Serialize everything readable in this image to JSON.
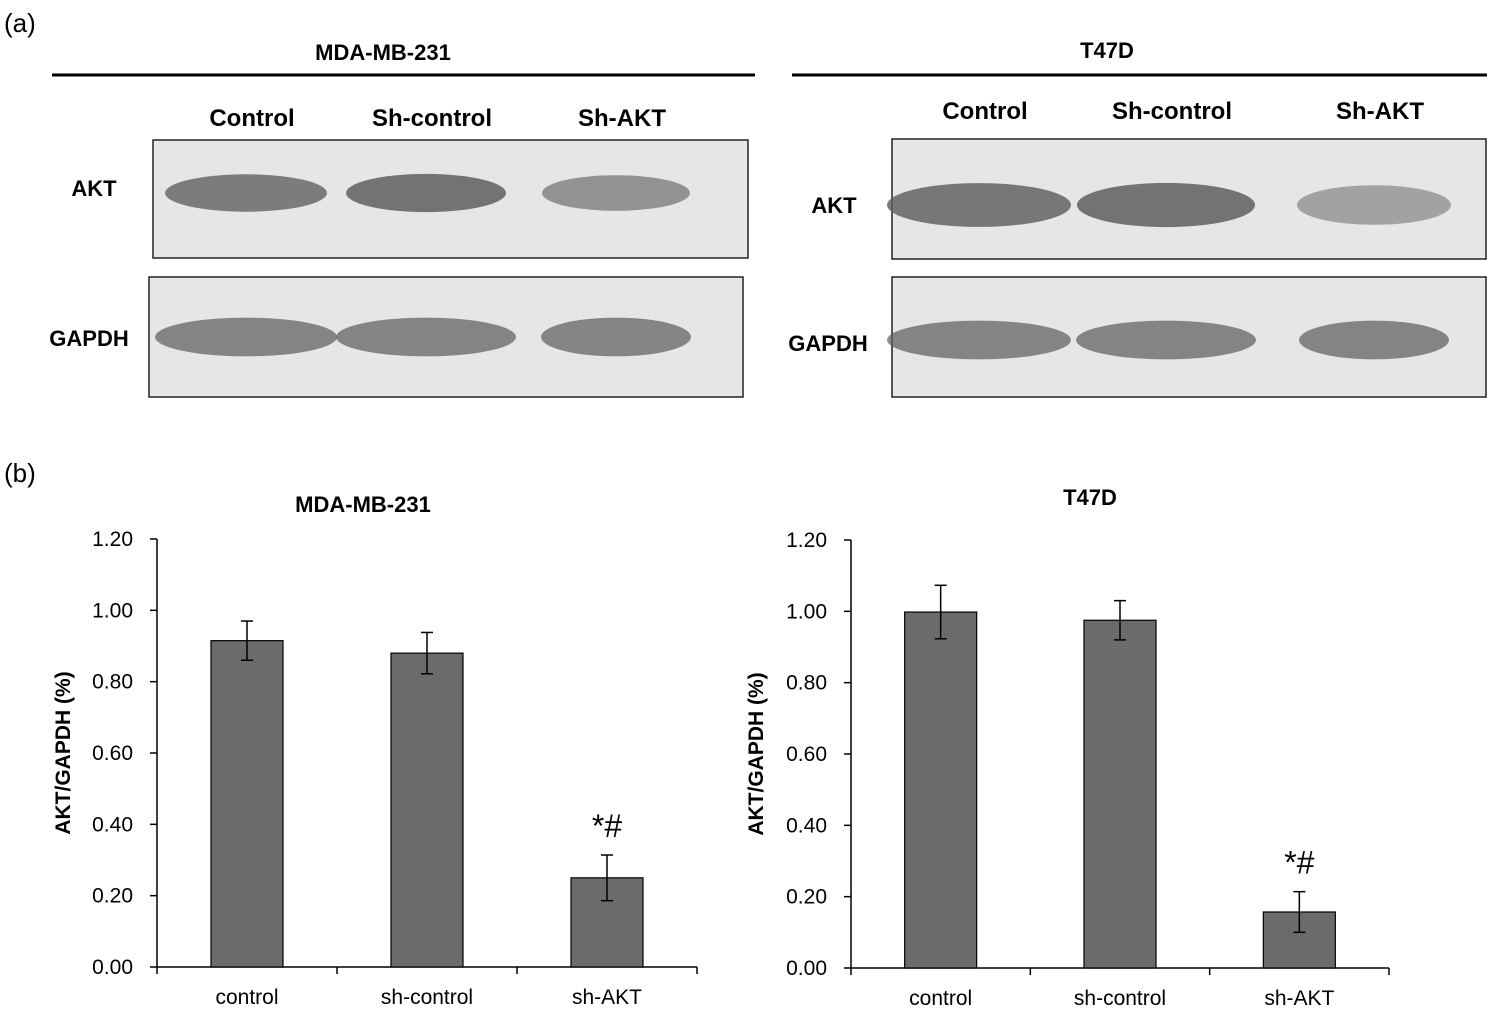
{
  "panel_a": {
    "label": "(a)",
    "blots": [
      {
        "cell_line": "MDA-MB-231",
        "lanes": [
          "Control",
          "Sh-control",
          "Sh-AKT"
        ],
        "rows": [
          {
            "protein": "AKT",
            "band_intensity": [
              0.78,
              0.85,
              0.62
            ]
          },
          {
            "protein": "GAPDH",
            "band_intensity": [
              0.72,
              0.72,
              0.72
            ]
          }
        ]
      },
      {
        "cell_line": "T47D",
        "lanes": [
          "Control",
          "Sh-control",
          "Sh-AKT"
        ],
        "rows": [
          {
            "protein": "AKT",
            "band_intensity": [
              0.82,
              0.85,
              0.5
            ]
          },
          {
            "protein": "GAPDH",
            "band_intensity": [
              0.72,
              0.72,
              0.72
            ]
          }
        ]
      }
    ]
  },
  "panel_b": {
    "label": "(b)"
  },
  "colors": {
    "bar": "#6b6b6b",
    "band": "#5e5e5e",
    "membrane": "#e6e6e6"
  },
  "chart_data": [
    {
      "type": "bar",
      "title": "MDA-MB-231",
      "ylabel": "AKT/GAPDH (%)",
      "xlabel": "",
      "categories": [
        "control",
        "sh-control",
        "sh-AKT"
      ],
      "values": [
        0.915,
        0.88,
        0.25
      ],
      "errors": [
        0.055,
        0.058,
        0.064
      ],
      "annotations": [
        "",
        "",
        "*#"
      ],
      "ylim": [
        0,
        1.2
      ],
      "yticks": [
        "0.00",
        "0.20",
        "0.40",
        "0.60",
        "0.80",
        "1.00",
        "1.20"
      ]
    },
    {
      "type": "bar",
      "title": "T47D",
      "ylabel": "AKT/GAPDH (%)",
      "xlabel": "",
      "categories": [
        "control",
        "sh-control",
        "sh-AKT"
      ],
      "values": [
        0.998,
        0.975,
        0.157
      ],
      "errors": [
        0.075,
        0.055,
        0.057
      ],
      "annotations": [
        "",
        "",
        "*#"
      ],
      "ylim": [
        0,
        1.2
      ],
      "yticks": [
        "0.00",
        "0.20",
        "0.40",
        "0.60",
        "0.80",
        "1.00",
        "1.20"
      ]
    }
  ]
}
